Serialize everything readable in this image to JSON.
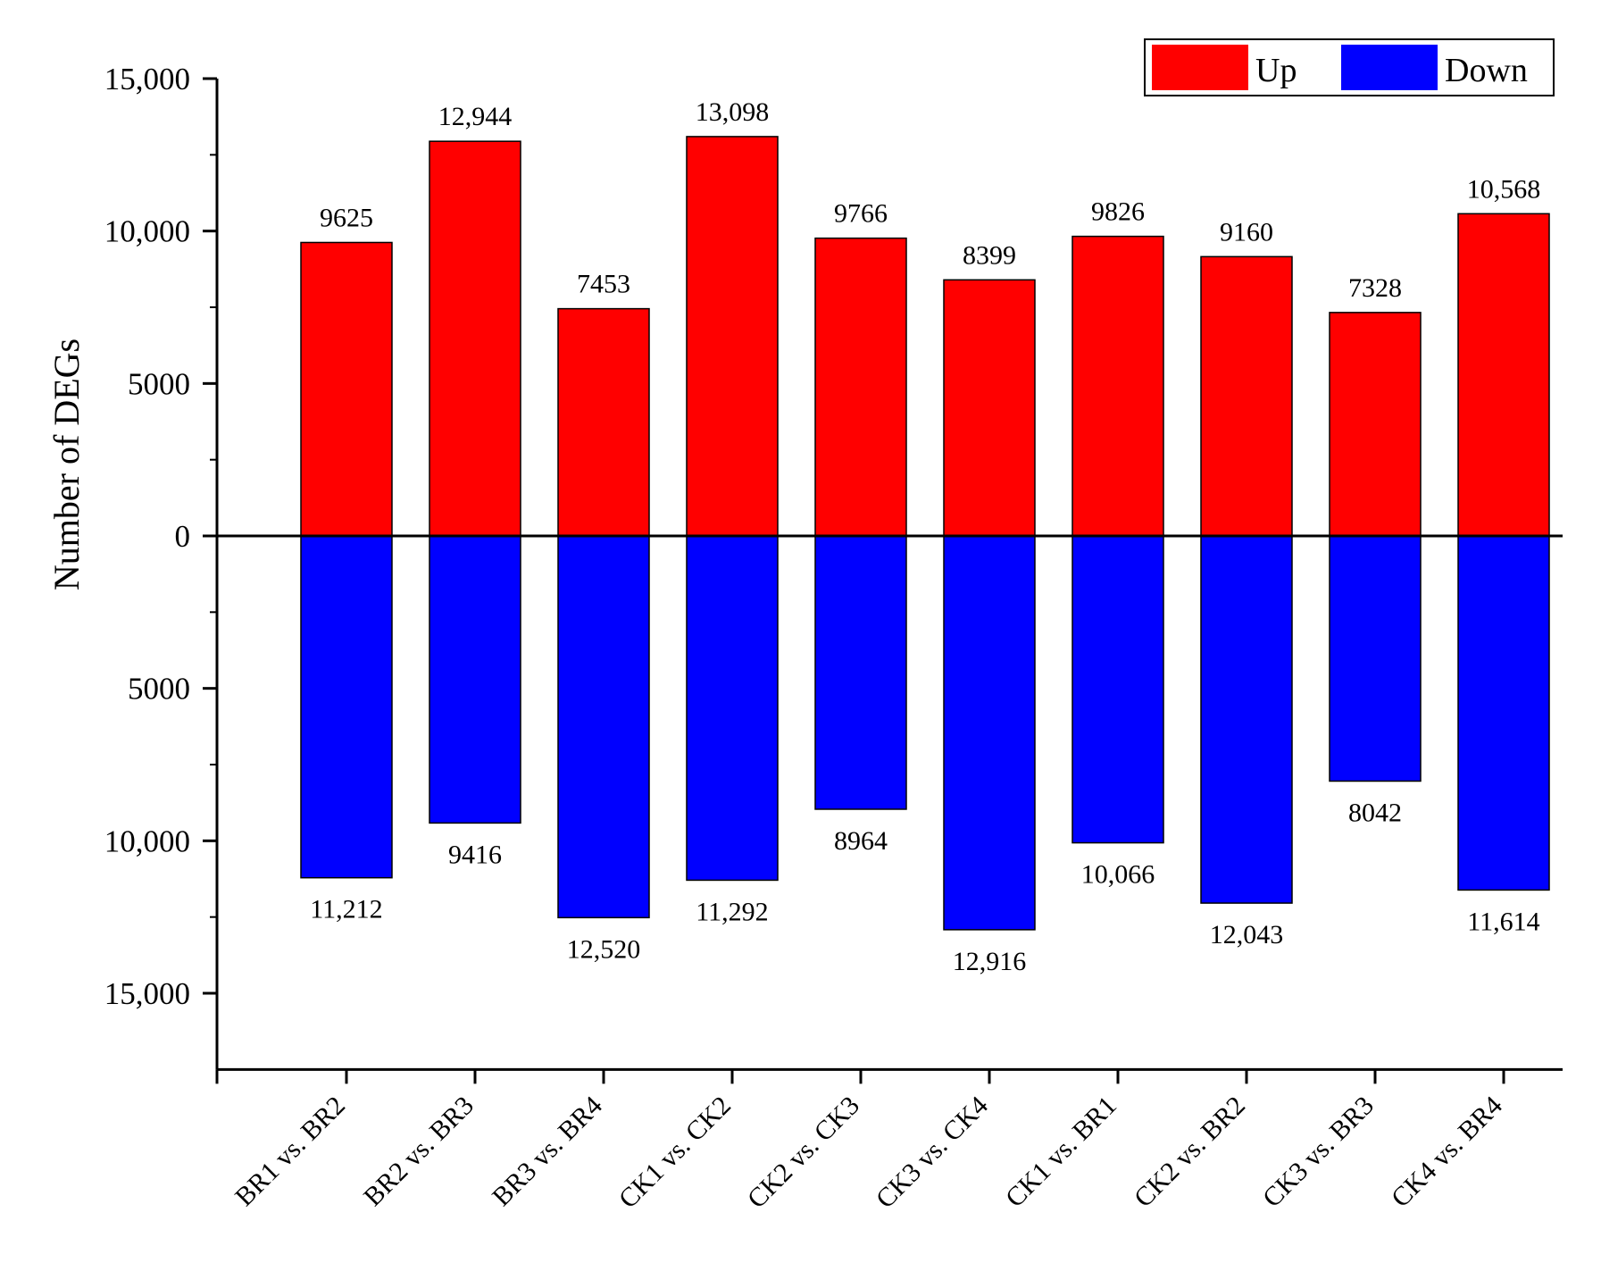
{
  "chart_data": {
    "type": "bar",
    "title": "",
    "xlabel": "",
    "ylabel": "Number of  DEGs",
    "categories": [
      "BR1 vs. BR2",
      "BR2 vs. BR3",
      "BR3 vs. BR4",
      "CK1 vs. CK2",
      "CK2 vs. CK3",
      "CK3 vs. CK4",
      "CK1 vs. BR1",
      "CK2 vs. BR2",
      "CK3 vs. BR3",
      "CK4 vs. BR4"
    ],
    "series": [
      {
        "name": "Up",
        "color": "#ff0000",
        "values": [
          9625,
          12944,
          7453,
          13098,
          9766,
          8399,
          9826,
          9160,
          7328,
          10568
        ],
        "labels": [
          "9625",
          "12,944",
          "7453",
          "13,098",
          "9766",
          "8399",
          "9826",
          "9160",
          "7328",
          "10,568"
        ]
      },
      {
        "name": "Down",
        "color": "#0000ff",
        "values": [
          11212,
          9416,
          12520,
          11292,
          8964,
          12916,
          10066,
          12043,
          8042,
          11614
        ],
        "labels": [
          "11,212",
          "9416",
          "12,520",
          "11,292",
          "8964",
          "12,916",
          "10,066",
          "12,043",
          "8042",
          "11,614"
        ]
      }
    ],
    "ylim": [
      -17500,
      15000
    ],
    "yticks": [
      15000,
      10000,
      5000,
      0,
      -5000,
      -10000,
      -15000
    ],
    "ytick_labels": [
      "15,000",
      "10,000",
      "5000",
      "0",
      "5000",
      "10,000",
      "15,000"
    ],
    "grid": false,
    "legend_position": "top-right"
  }
}
